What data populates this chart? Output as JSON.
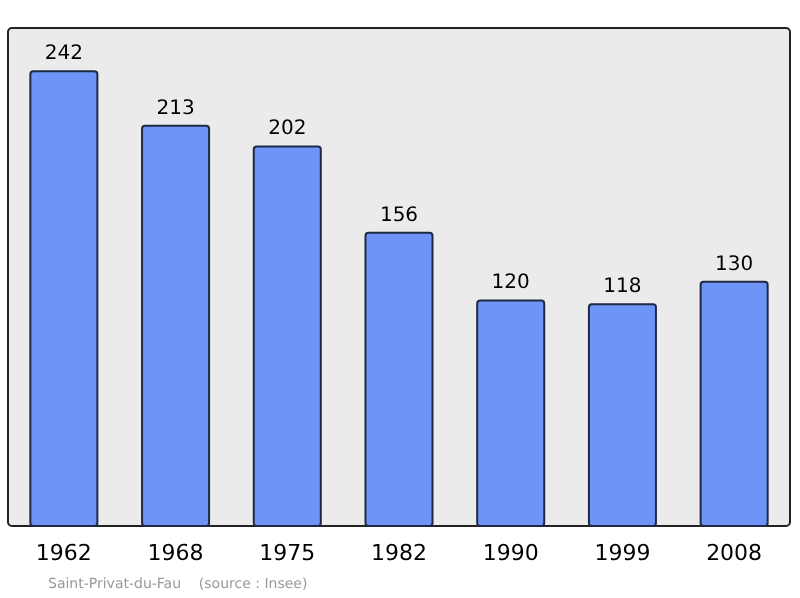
{
  "chart_data": {
    "type": "bar",
    "categories": [
      "1962",
      "1968",
      "1975",
      "1982",
      "1990",
      "1999",
      "2008"
    ],
    "values": [
      242,
      213,
      202,
      156,
      120,
      118,
      130
    ],
    "color": "#6f94f7",
    "ylim": [
      0,
      265
    ],
    "tick_labels": "x",
    "data_labels": true,
    "annotations": [
      "Saint-Privat-du-Fau    (source : Insee)"
    ]
  }
}
